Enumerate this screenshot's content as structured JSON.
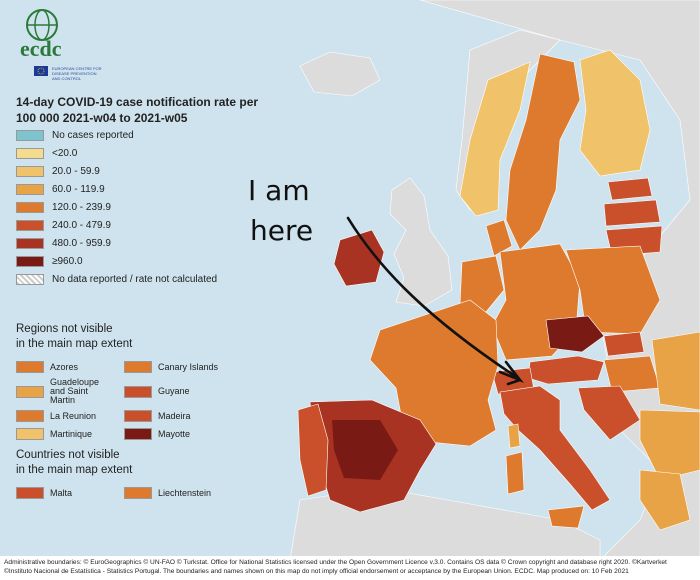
{
  "logo": {
    "text": "ecdc",
    "subtitle": "EUROPEAN CENTRE FOR DISEASE PREVENTION AND CONTROL"
  },
  "title": "14-day COVID-19 case notification rate per 100 000 2021-w04 to 2021-w05",
  "legend": [
    {
      "label": "No cases reported",
      "color": "#7ec4cf"
    },
    {
      "label": "<20.0",
      "color": "#f4dc8e"
    },
    {
      "label": "20.0 - 59.9",
      "color": "#f0c36a"
    },
    {
      "label": "60.0 - 119.9",
      "color": "#e9a347"
    },
    {
      "label": "120.0 - 239.9",
      "color": "#de7a2e"
    },
    {
      "label": "240.0 - 479.9",
      "color": "#c9502a"
    },
    {
      "label": "480.0 - 959.9",
      "color": "#a83322"
    },
    {
      "label": "≥960.0",
      "color": "#7a1a14"
    },
    {
      "label": "No data reported / rate not calculated",
      "color": "#dddddd"
    }
  ],
  "regions_heading": "Regions not visible\nin the main map extent",
  "regions": [
    {
      "label": "Azores",
      "color": "#de7a2e"
    },
    {
      "label": "Canary Islands",
      "color": "#de7a2e"
    },
    {
      "label": "Guadeloupe and Saint Martin",
      "color": "#e9a347"
    },
    {
      "label": "Guyane",
      "color": "#c9502a"
    },
    {
      "label": "La Reunion",
      "color": "#de7a2e"
    },
    {
      "label": "Madeira",
      "color": "#c9502a"
    },
    {
      "label": "Martinique",
      "color": "#f0c36a"
    },
    {
      "label": "Mayotte",
      "color": "#7a1a14"
    }
  ],
  "countries_heading": "Countries not visible\nin the main map extent",
  "countries": [
    {
      "label": "Malta",
      "color": "#c9502a"
    },
    {
      "label": "Liechtenstein",
      "color": "#de7a2e"
    }
  ],
  "annotation": {
    "line1": "I am",
    "line2": "here"
  },
  "footer": "Administrative boundaries: © EuroGeographics © UN-FAO © Turkstat. Office for National Statistics licensed under the Open Government Licence v.3.0. Contains OS data © Crown copyright and database right 2020. ©Kartverket ©Instituto Nacional de Estatística - Statistics Portugal. The boundaries and names shown on this map do not imply official endorsement or acceptance by the European Union. ECDC. Map produced on: 10 Feb 2021",
  "colors": {
    "sea": "#cfe3ee",
    "non_eu_land": "#dcdcdc"
  }
}
